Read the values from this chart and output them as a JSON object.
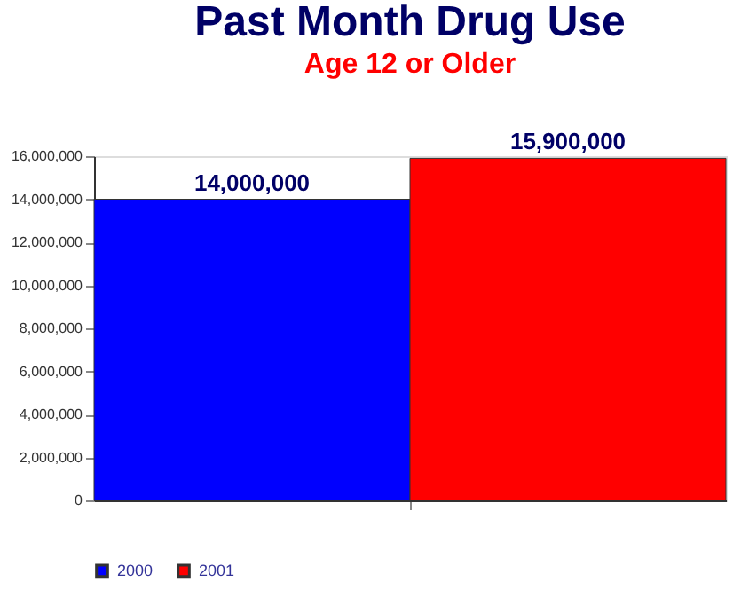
{
  "chart_data": {
    "type": "bar",
    "title": "Past Month Drug Use",
    "subtitle": "Age 12 or Older",
    "categories": [
      null
    ],
    "series": [
      {
        "name": "2000",
        "color": "#0000ff",
        "values": [
          14000000
        ],
        "value_labels": [
          "14,000,000"
        ]
      },
      {
        "name": "2001",
        "color": "#ff0000",
        "values": [
          15900000
        ],
        "value_labels": [
          "15,900,000"
        ]
      }
    ],
    "ylim": [
      0,
      16000000
    ],
    "yticks": [
      0,
      {
        "value": 2000000,
        "label": "2,000,000"
      },
      {
        "value": 4000000,
        "label": "4,000,000"
      },
      {
        "value": 6000000,
        "label": "6,000,000"
      },
      {
        "value": 8000000,
        "label": "8,000,000"
      },
      {
        "value": 10000000,
        "label": "10,000,000"
      },
      {
        "value": 12000000,
        "label": "12,000,000"
      },
      {
        "value": 14000000,
        "label": "14,000,000"
      },
      {
        "value": 16000000,
        "label": "16,000,000"
      }
    ],
    "legend": "bottom"
  }
}
